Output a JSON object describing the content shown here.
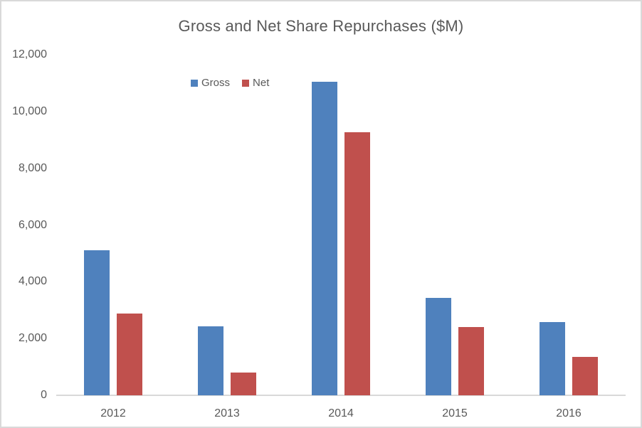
{
  "chart_data": {
    "type": "bar",
    "title": "Gross and Net Share Repurchases ($M)",
    "categories": [
      "2012",
      "2013",
      "2014",
      "2015",
      "2016"
    ],
    "series": [
      {
        "name": "Gross",
        "color": "#4F81BD",
        "values": [
          5100,
          2430,
          11050,
          3430,
          2590
        ]
      },
      {
        "name": "Net",
        "color": "#C0504D",
        "values": [
          2870,
          800,
          9270,
          2400,
          1350
        ]
      }
    ],
    "xlabel": "",
    "ylabel": "",
    "ylim": [
      0,
      12000
    ],
    "ytick_step": 2000,
    "ytick_labels": [
      "0",
      "2,000",
      "4,000",
      "6,000",
      "8,000",
      "10,000",
      "12,000"
    ],
    "grid": false,
    "legend_position": "inside-top-left"
  },
  "colors": {
    "text": "#595959",
    "axis_line": "#D9D9D9",
    "frame_border": "#D9D9D9",
    "background": "#FFFFFF",
    "gross": "#4F81BD",
    "net": "#C0504D"
  }
}
